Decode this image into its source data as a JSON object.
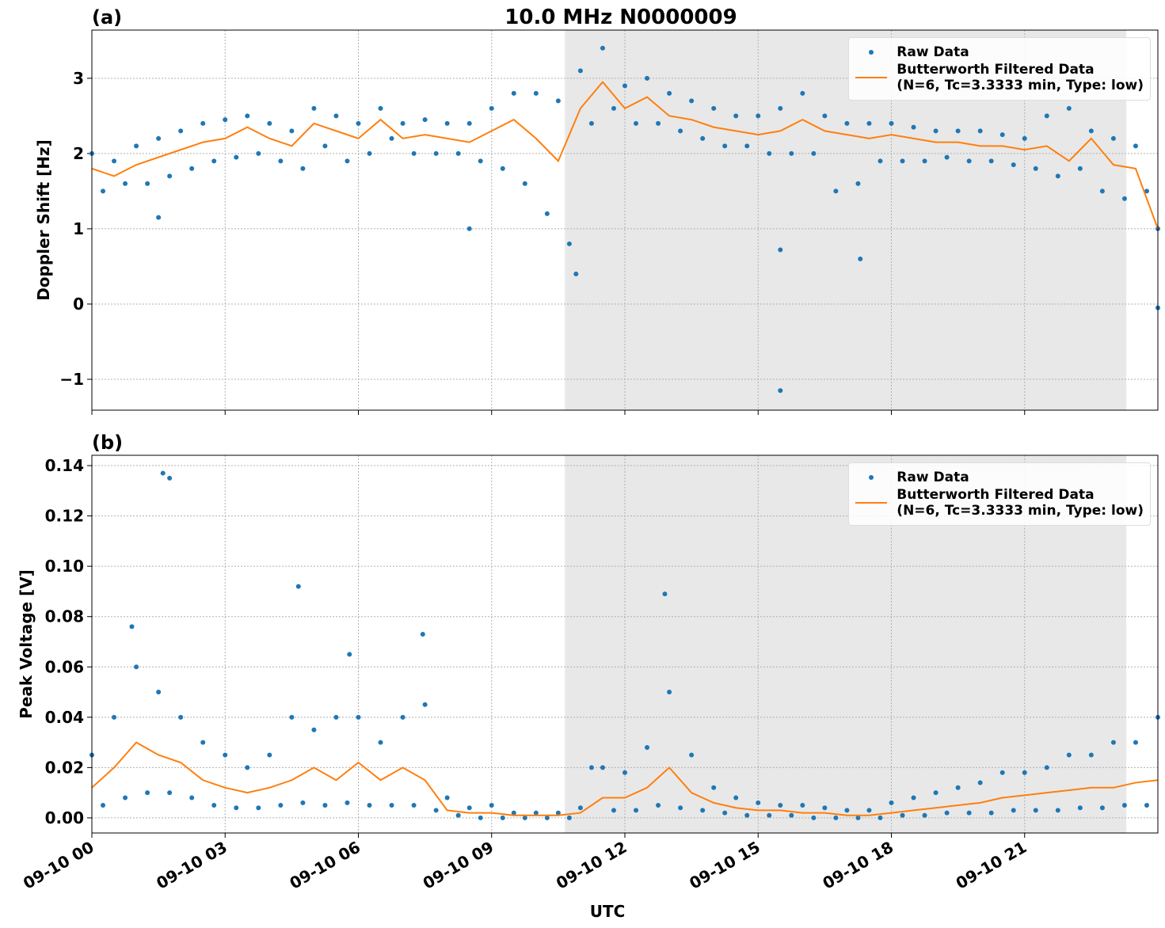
{
  "chart_data": [
    {
      "type": "line",
      "title": "10.0 MHz N0000009",
      "panel_label": "(a)",
      "ylabel": "Doppler Shift [Hz]",
      "xlim": [
        0,
        24
      ],
      "xticks": [
        0,
        3,
        6,
        9,
        12,
        15,
        18,
        21
      ],
      "ylim": [
        -1.41,
        3.64
      ],
      "yticks": [
        {
          "value": -1,
          "label": "−1"
        },
        0,
        1,
        2,
        3
      ],
      "grid": true,
      "shaded_x": [
        10.65,
        23.29
      ],
      "legend": "upper right",
      "series": [
        {
          "name": "Raw Data",
          "color": "#1f77b4",
          "mode": "markers",
          "x": [
            0,
            0.25,
            0.5,
            0.75,
            1,
            1.25,
            1.5,
            1.75,
            2,
            2.25,
            2.5,
            2.75,
            3,
            3.25,
            3.5,
            3.75,
            4,
            4.25,
            4.5,
            4.75,
            5,
            5.25,
            5.5,
            5.75,
            6,
            6.25,
            6.5,
            6.75,
            7,
            7.25,
            7.5,
            7.75,
            8,
            8.25,
            8.5,
            8.75,
            9,
            9.25,
            9.5,
            9.75,
            10,
            10.25,
            10.5,
            10.75,
            11,
            11.25,
            11.5,
            11.75,
            12,
            12.25,
            12.5,
            12.75,
            13,
            13.25,
            13.5,
            13.75,
            14,
            14.25,
            14.5,
            14.75,
            15,
            15.25,
            15.5,
            15.75,
            16,
            16.25,
            16.5,
            16.75,
            17,
            17.25,
            17.5,
            17.75,
            18,
            18.25,
            18.5,
            18.75,
            19,
            19.25,
            19.5,
            19.75,
            20,
            20.25,
            20.5,
            20.75,
            21,
            21.25,
            21.5,
            21.75,
            22,
            22.25,
            22.5,
            22.75,
            23,
            23.25,
            23.5,
            23.75,
            24,
            1.5,
            8.5,
            15.5,
            15.5,
            17.3,
            10.9,
            24
          ],
          "values": [
            2.0,
            1.5,
            1.9,
            1.6,
            2.1,
            1.6,
            2.2,
            1.7,
            2.3,
            1.8,
            2.4,
            1.9,
            2.45,
            1.95,
            2.5,
            2.0,
            2.4,
            1.9,
            2.3,
            1.8,
            2.6,
            2.1,
            2.5,
            1.9,
            2.4,
            2.0,
            2.6,
            2.2,
            2.4,
            2.0,
            2.45,
            2.0,
            2.4,
            2.0,
            2.4,
            1.9,
            2.6,
            1.8,
            2.8,
            1.6,
            2.8,
            1.2,
            2.7,
            0.8,
            3.1,
            2.4,
            3.4,
            2.6,
            2.9,
            2.4,
            3.0,
            2.4,
            2.8,
            2.3,
            2.7,
            2.2,
            2.6,
            2.1,
            2.5,
            2.1,
            2.5,
            2.0,
            2.6,
            2.0,
            2.8,
            2.0,
            2.5,
            1.5,
            2.4,
            1.6,
            2.4,
            1.9,
            2.4,
            1.9,
            2.35,
            1.9,
            2.3,
            1.95,
            2.3,
            1.9,
            2.3,
            1.9,
            2.25,
            1.85,
            2.2,
            1.8,
            2.5,
            1.7,
            2.6,
            1.8,
            2.3,
            1.5,
            2.2,
            1.4,
            2.1,
            1.5,
            1.0,
            1.15,
            1.0,
            -1.15,
            0.72,
            0.6,
            0.4,
            -0.05
          ]
        },
        {
          "name": "Butterworth Filtered Data\n(N=6, Tc=3.3333 min, Type: low)",
          "color": "#ff7f0e",
          "mode": "lines",
          "x": [
            0,
            0.5,
            1,
            1.5,
            2,
            2.5,
            3,
            3.5,
            4,
            4.5,
            5,
            5.5,
            6,
            6.5,
            7,
            7.5,
            8,
            8.5,
            9,
            9.5,
            10,
            10.5,
            11,
            11.5,
            12,
            12.5,
            13,
            13.5,
            14,
            14.5,
            15,
            15.5,
            16,
            16.5,
            17,
            17.5,
            18,
            18.5,
            19,
            19.5,
            20,
            20.5,
            21,
            21.5,
            22,
            22.5,
            23,
            23.5,
            24
          ],
          "values": [
            1.8,
            1.7,
            1.85,
            1.95,
            2.05,
            2.15,
            2.2,
            2.35,
            2.2,
            2.1,
            2.4,
            2.3,
            2.2,
            2.45,
            2.2,
            2.25,
            2.2,
            2.15,
            2.3,
            2.45,
            2.2,
            1.9,
            2.6,
            2.95,
            2.6,
            2.75,
            2.5,
            2.45,
            2.35,
            2.3,
            2.25,
            2.3,
            2.45,
            2.3,
            2.25,
            2.2,
            2.25,
            2.2,
            2.15,
            2.15,
            2.1,
            2.1,
            2.05,
            2.1,
            1.9,
            2.2,
            1.85,
            1.8,
            1.0
          ]
        }
      ]
    },
    {
      "type": "line",
      "panel_label": "(b)",
      "ylabel": "Peak Voltage [V]",
      "xlabel": "UTC",
      "xlim": [
        0,
        24
      ],
      "xticks": [
        {
          "value": 0,
          "label": "09-10 00"
        },
        {
          "value": 3,
          "label": "09-10 03"
        },
        {
          "value": 6,
          "label": "09-10 06"
        },
        {
          "value": 9,
          "label": "09-10 09"
        },
        {
          "value": 12,
          "label": "09-10 12"
        },
        {
          "value": 15,
          "label": "09-10 15"
        },
        {
          "value": 18,
          "label": "09-10 18"
        },
        {
          "value": 21,
          "label": "09-10 21"
        }
      ],
      "ylim": [
        -0.006,
        0.1441
      ],
      "yticks": [
        {
          "value": 0,
          "label": "0.00"
        },
        {
          "value": 0.02,
          "label": "0.02"
        },
        {
          "value": 0.04,
          "label": "0.04"
        },
        {
          "value": 0.06,
          "label": "0.06"
        },
        {
          "value": 0.08,
          "label": "0.08"
        },
        {
          "value": 0.1,
          "label": "0.10"
        },
        {
          "value": 0.12,
          "label": "0.12"
        },
        {
          "value": 0.14,
          "label": "0.14"
        }
      ],
      "grid": true,
      "shaded_x": [
        10.65,
        23.29
      ],
      "legend": "upper right",
      "series": [
        {
          "name": "Raw Data",
          "color": "#1f77b4",
          "mode": "markers",
          "x": [
            0,
            0.25,
            0.5,
            0.75,
            1,
            1.25,
            1.5,
            1.75,
            2,
            2.25,
            2.5,
            2.75,
            3,
            3.25,
            3.5,
            3.75,
            4,
            4.25,
            4.5,
            4.75,
            5,
            5.25,
            5.5,
            5.75,
            6,
            6.25,
            6.5,
            6.75,
            7,
            7.25,
            7.5,
            7.75,
            8,
            8.25,
            8.5,
            8.75,
            9,
            9.25,
            9.5,
            9.75,
            10,
            10.25,
            10.5,
            10.75,
            11,
            11.25,
            11.5,
            11.75,
            12,
            12.25,
            12.5,
            12.75,
            13,
            13.25,
            13.5,
            13.75,
            14,
            14.25,
            14.5,
            14.75,
            15,
            15.25,
            15.5,
            15.75,
            16,
            16.25,
            16.5,
            16.75,
            17,
            17.25,
            17.5,
            17.75,
            18,
            18.25,
            18.5,
            18.75,
            19,
            19.25,
            19.5,
            19.75,
            20,
            20.25,
            20.5,
            20.75,
            21,
            21.25,
            21.5,
            21.75,
            22,
            22.25,
            22.5,
            22.75,
            23,
            23.25,
            23.5,
            23.75,
            24,
            1.6,
            1.75,
            4.65,
            5.8,
            12.9,
            7.45,
            0.9
          ],
          "values": [
            0.025,
            0.005,
            0.04,
            0.008,
            0.06,
            0.01,
            0.05,
            0.01,
            0.04,
            0.008,
            0.03,
            0.005,
            0.025,
            0.004,
            0.02,
            0.004,
            0.025,
            0.005,
            0.04,
            0.006,
            0.035,
            0.005,
            0.04,
            0.006,
            0.04,
            0.005,
            0.03,
            0.005,
            0.04,
            0.005,
            0.045,
            0.003,
            0.008,
            0.001,
            0.004,
            0.0,
            0.005,
            0.0,
            0.002,
            0.0,
            0.002,
            0.0,
            0.002,
            0.0,
            0.004,
            0.02,
            0.02,
            0.003,
            0.018,
            0.003,
            0.028,
            0.005,
            0.05,
            0.004,
            0.025,
            0.003,
            0.012,
            0.002,
            0.008,
            0.001,
            0.006,
            0.001,
            0.005,
            0.001,
            0.005,
            0.0,
            0.004,
            0.0,
            0.003,
            0.0,
            0.003,
            0.0,
            0.006,
            0.001,
            0.008,
            0.001,
            0.01,
            0.002,
            0.012,
            0.002,
            0.014,
            0.002,
            0.018,
            0.003,
            0.018,
            0.003,
            0.02,
            0.003,
            0.025,
            0.004,
            0.025,
            0.004,
            0.03,
            0.005,
            0.03,
            0.005,
            0.04,
            0.137,
            0.135,
            0.092,
            0.065,
            0.089,
            0.073,
            0.076
          ]
        },
        {
          "name": "Butterworth Filtered Data\n(N=6, Tc=3.3333 min, Type: low)",
          "color": "#ff7f0e",
          "mode": "lines",
          "x": [
            0,
            0.5,
            1,
            1.5,
            2,
            2.5,
            3,
            3.5,
            4,
            4.5,
            5,
            5.5,
            6,
            6.5,
            7,
            7.5,
            8,
            8.5,
            9,
            9.5,
            10,
            10.5,
            11,
            11.5,
            12,
            12.5,
            13,
            13.5,
            14,
            14.5,
            15,
            15.5,
            16,
            16.5,
            17,
            17.5,
            18,
            18.5,
            19,
            19.5,
            20,
            20.5,
            21,
            21.5,
            22,
            22.5,
            23,
            23.5,
            24
          ],
          "values": [
            0.012,
            0.02,
            0.03,
            0.025,
            0.022,
            0.015,
            0.012,
            0.01,
            0.012,
            0.015,
            0.02,
            0.015,
            0.022,
            0.015,
            0.02,
            0.015,
            0.003,
            0.002,
            0.002,
            0.001,
            0.001,
            0.001,
            0.002,
            0.008,
            0.008,
            0.012,
            0.02,
            0.01,
            0.006,
            0.004,
            0.003,
            0.003,
            0.002,
            0.002,
            0.001,
            0.001,
            0.002,
            0.003,
            0.004,
            0.005,
            0.006,
            0.008,
            0.009,
            0.01,
            0.011,
            0.012,
            0.012,
            0.014,
            0.015
          ]
        }
      ]
    }
  ]
}
